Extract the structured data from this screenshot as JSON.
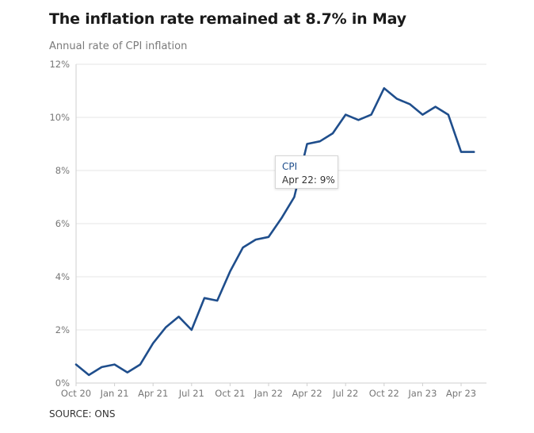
{
  "title": "The inflation rate remained at 8.7% in May",
  "subtitle": "Annual rate of CPI inflation",
  "source": "SOURCE: ONS",
  "tooltip": {
    "series": "CPI",
    "text": "Apr 22: 9%"
  },
  "colors": {
    "line": "#1f4e8c",
    "grid": "#e6e6e6",
    "axis_text": "#777777"
  },
  "chart_data": {
    "type": "line",
    "title": "The inflation rate remained at 8.7% in May",
    "subtitle": "Annual rate of CPI inflation",
    "xlabel": "",
    "ylabel": "",
    "ylim": [
      0,
      12
    ],
    "grid": true,
    "y_ticks": [
      "0%",
      "2%",
      "4%",
      "6%",
      "8%",
      "10%",
      "12%"
    ],
    "y_tick_values": [
      0,
      2,
      4,
      6,
      8,
      10,
      12
    ],
    "x_tick_labels": [
      "Oct 20",
      "Jan 21",
      "Apr 21",
      "Jul 21",
      "Oct 21",
      "Jan 22",
      "Apr 22",
      "Jul 22",
      "Oct 22",
      "Jan 23",
      "Apr 23"
    ],
    "x": [
      "Oct 20",
      "Nov 20",
      "Dec 20",
      "Jan 21",
      "Feb 21",
      "Mar 21",
      "Apr 21",
      "May 21",
      "Jun 21",
      "Jul 21",
      "Aug 21",
      "Sep 21",
      "Oct 21",
      "Nov 21",
      "Dec 21",
      "Jan 22",
      "Feb 22",
      "Mar 22",
      "Apr 22",
      "May 22",
      "Jun 22",
      "Jul 22",
      "Aug 22",
      "Sep 22",
      "Oct 22",
      "Nov 22",
      "Dec 22",
      "Jan 23",
      "Feb 23",
      "Mar 23",
      "Apr 23",
      "May 23"
    ],
    "series": [
      {
        "name": "CPI",
        "values": [
          0.7,
          0.3,
          0.6,
          0.7,
          0.4,
          0.7,
          1.5,
          2.1,
          2.5,
          2.0,
          3.2,
          3.1,
          4.2,
          5.1,
          5.4,
          5.5,
          6.2,
          7.0,
          9.0,
          9.1,
          9.4,
          10.1,
          9.9,
          10.1,
          11.1,
          10.7,
          10.5,
          10.1,
          10.4,
          10.1,
          8.7,
          8.7
        ]
      }
    ]
  }
}
